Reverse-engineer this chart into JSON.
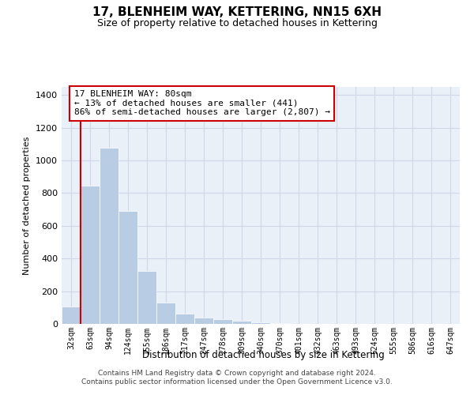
{
  "title": "17, BLENHEIM WAY, KETTERING, NN15 6XH",
  "subtitle": "Size of property relative to detached houses in Kettering",
  "xlabel": "Distribution of detached houses by size in Kettering",
  "ylabel": "Number of detached properties",
  "categories": [
    "32sqm",
    "63sqm",
    "94sqm",
    "124sqm",
    "155sqm",
    "186sqm",
    "217sqm",
    "247sqm",
    "278sqm",
    "309sqm",
    "340sqm",
    "370sqm",
    "401sqm",
    "432sqm",
    "463sqm",
    "493sqm",
    "524sqm",
    "555sqm",
    "586sqm",
    "616sqm",
    "647sqm"
  ],
  "values": [
    105,
    845,
    1080,
    690,
    325,
    130,
    65,
    40,
    30,
    18,
    10,
    5,
    0,
    0,
    0,
    0,
    0,
    0,
    0,
    0,
    0
  ],
  "bar_color": "#b8cce4",
  "bar_edge_color": "#ffffff",
  "grid_color": "#d0d8e8",
  "background_color": "#eaf0f8",
  "red_line_x": 0.5,
  "annotation_text": "17 BLENHEIM WAY: 80sqm\n← 13% of detached houses are smaller (441)\n86% of semi-detached houses are larger (2,807) →",
  "annotation_box_color": "#ffffff",
  "annotation_box_edge": "#cc0000",
  "ylim": [
    0,
    1450
  ],
  "yticks": [
    0,
    200,
    400,
    600,
    800,
    1000,
    1200,
    1400
  ],
  "footer_line1": "Contains HM Land Registry data © Crown copyright and database right 2024.",
  "footer_line2": "Contains public sector information licensed under the Open Government Licence v3.0."
}
